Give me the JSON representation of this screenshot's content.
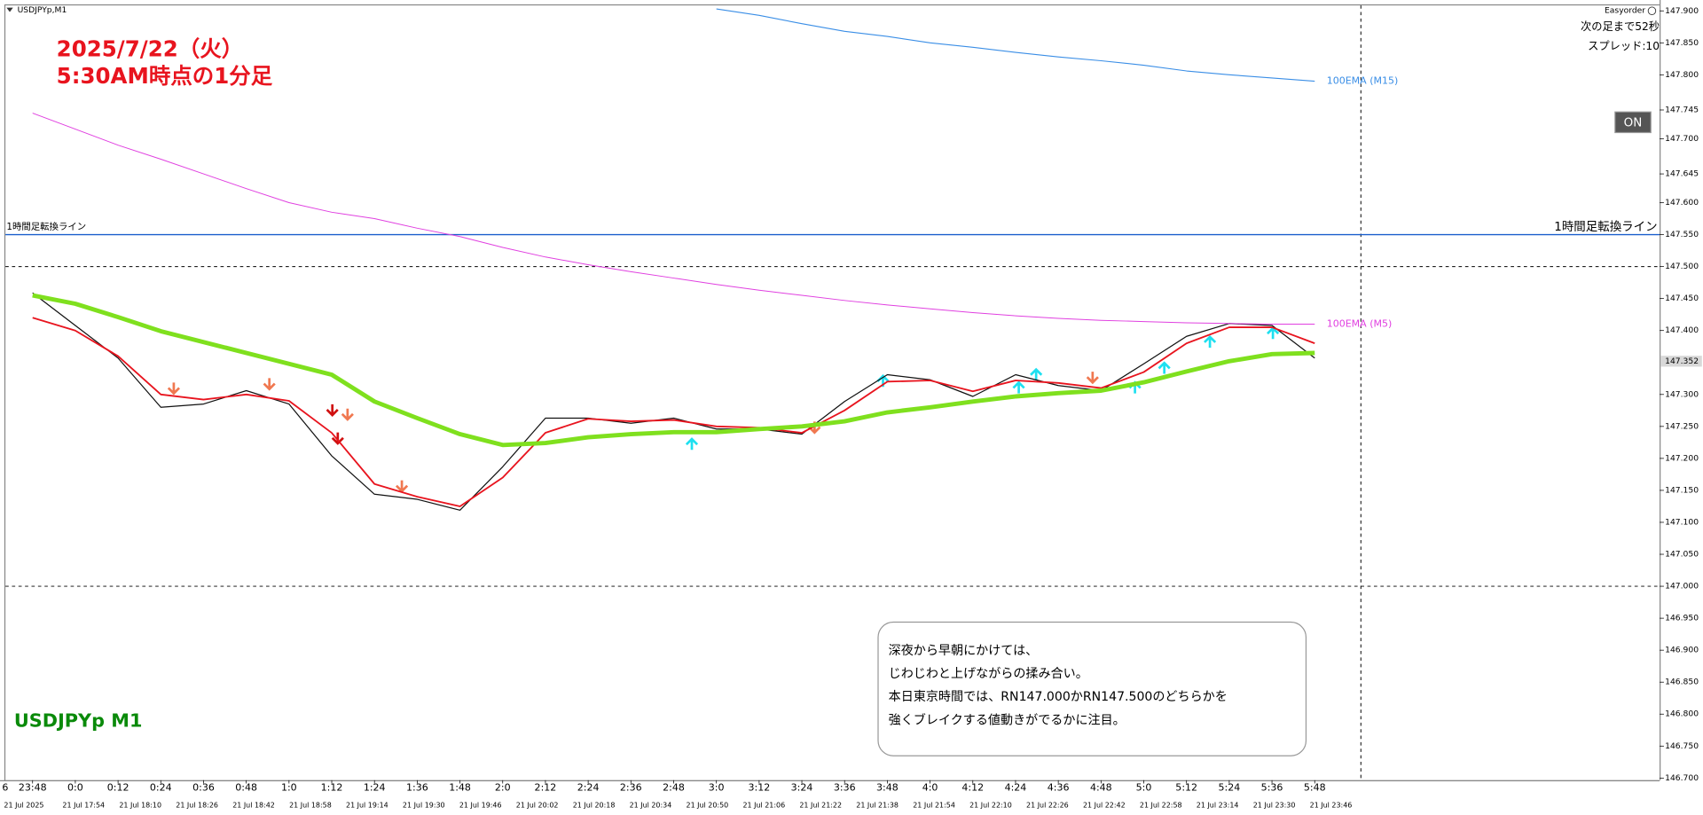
{
  "chart_data": {
    "type": "line",
    "symbol": "USDJPYp,M1",
    "title": "2025/7/22（火）",
    "subtitle": "5:30AM時点の1分足",
    "watermark": "USDJPYp M1",
    "panel": {
      "name": "Easyorder",
      "countdown": "次の足まで52秒",
      "spread": "スプレッド:10",
      "button": "ON"
    },
    "x_edge_label": "6",
    "categories": [
      "23:48",
      "0:0",
      "0:12",
      "0:24",
      "0:36",
      "0:48",
      "1:0",
      "1:12",
      "1:24",
      "1:36",
      "1:48",
      "2:0",
      "2:12",
      "2:24",
      "2:36",
      "2:48",
      "3:0",
      "3:12",
      "3:24",
      "3:36",
      "3:48",
      "4:0",
      "4:12",
      "4:24",
      "4:36",
      "4:48",
      "5:0",
      "5:12",
      "5:24",
      "5:36",
      "5:48"
    ],
    "x2_labels": [
      "21 Jul 2025",
      "21 Jul 17:54",
      "21 Jul 18:10",
      "21 Jul 18:26",
      "21 Jul 18:42",
      "21 Jul 18:58",
      "21 Jul 19:14",
      "21 Jul 19:30",
      "21 Jul 19:46",
      "21 Jul 20:02",
      "21 Jul 20:18",
      "21 Jul 20:34",
      "21 Jul 20:50",
      "21 Jul 21:06",
      "21 Jul 21:22",
      "21 Jul 21:38",
      "21 Jul 21:54",
      "21 Jul 22:10",
      "21 Jul 22:26",
      "21 Jul 22:42",
      "21 Jul 22:58",
      "21 Jul 23:14",
      "21 Jul 23:30",
      "21 Jul 23:46"
    ],
    "series": [
      {
        "color": "#111111",
        "values": [
          147.459,
          147.408,
          147.357,
          147.28,
          147.285,
          147.306,
          147.285,
          147.204,
          147.144,
          147.136,
          147.119,
          147.187,
          147.263,
          147.263,
          147.255,
          147.263,
          147.246,
          147.246,
          147.238,
          147.289,
          147.331,
          147.323,
          147.297,
          147.331,
          147.314,
          147.306,
          147.348,
          147.391,
          147.411,
          147.408,
          147.357
        ]
      },
      {
        "color": "#e8141e",
        "values": [
          147.42,
          147.4,
          147.36,
          147.3,
          147.292,
          147.3,
          147.29,
          147.24,
          147.16,
          147.14,
          147.125,
          147.17,
          147.24,
          147.262,
          147.258,
          147.26,
          147.25,
          147.248,
          147.24,
          147.275,
          147.32,
          147.322,
          147.305,
          147.322,
          147.318,
          147.31,
          147.335,
          147.38,
          147.405,
          147.405,
          147.38
        ]
      },
      {
        "color": "#7fe01e",
        "values": [
          147.455,
          147.442,
          147.421,
          147.399,
          147.382,
          147.365,
          147.348,
          147.331,
          147.289,
          147.263,
          147.238,
          147.221,
          147.224,
          147.233,
          147.238,
          147.241,
          147.241,
          147.246,
          147.25,
          147.258,
          147.272,
          147.28,
          147.289,
          147.297,
          147.302,
          147.306,
          147.319,
          147.336,
          147.352,
          147.363,
          147.365
        ]
      },
      {
        "name": "100EMA (M5)",
        "color": "#e040e0",
        "values": [
          147.74,
          147.715,
          147.69,
          147.668,
          147.645,
          147.622,
          147.6,
          147.585,
          147.575,
          147.56,
          147.547,
          147.53,
          147.515,
          147.503,
          147.492,
          147.482,
          147.472,
          147.463,
          147.455,
          147.447,
          147.44,
          147.434,
          147.428,
          147.423,
          147.419,
          147.416,
          147.414,
          147.412,
          147.411,
          147.41,
          147.41
        ]
      },
      {
        "name": "100EMA (M15)",
        "color": "#3a8ee6",
        "values": [
          null,
          null,
          null,
          null,
          null,
          null,
          null,
          null,
          null,
          null,
          null,
          null,
          null,
          null,
          null,
          null,
          147.903,
          147.893,
          147.88,
          147.868,
          147.86,
          147.85,
          147.843,
          147.835,
          147.828,
          147.822,
          147.815,
          147.806,
          147.8,
          147.795,
          147.79
        ]
      }
    ],
    "ylim": [
      146.6966,
      147.9085
    ],
    "yticks": [
      {
        "value": 147.9,
        "label": "147.900"
      },
      {
        "value": 147.85,
        "label": "147.850"
      },
      {
        "value": 147.8,
        "label": "147.800"
      },
      147.745,
      {
        "value": 147.7,
        "label": "147.700"
      },
      147.645,
      {
        "value": 147.6,
        "label": "147.600"
      },
      {
        "value": 147.55,
        "label": "147.550"
      },
      {
        "value": 147.5,
        "label": "147.500"
      },
      {
        "value": 147.45,
        "label": "147.450"
      },
      {
        "value": 147.4,
        "label": "147.400"
      },
      {
        "value": 147.3,
        "label": "147.300"
      },
      {
        "value": 147.25,
        "label": "147.250"
      },
      {
        "value": 147.2,
        "label": "147.200"
      },
      {
        "value": 147.15,
        "label": "147.150"
      },
      {
        "value": 147.1,
        "label": "147.100"
      },
      {
        "value": 147.05,
        "label": "147.050"
      },
      {
        "value": 147.0,
        "label": "147.000"
      },
      {
        "value": 146.95,
        "label": "146.950"
      },
      {
        "value": 146.9,
        "label": "146.900"
      },
      {
        "value": 146.85,
        "label": "146.850"
      },
      {
        "value": 146.8,
        "label": "146.800"
      },
      {
        "value": 146.75,
        "label": "146.750"
      },
      {
        "value": 146.7,
        "label": "146.700"
      }
    ],
    "current_price": 147.352,
    "levels": [
      {
        "label": "1時間足転換ライン",
        "value": 147.55,
        "color": "#1a5fcc"
      }
    ],
    "dashed_levels": [
      147.5,
      147.0
    ],
    "note": [
      "深夜から早朝にかけては、",
      "じわじわと上げながらの揉み合い。",
      "本日東京時間では、RN147.000かRN147.500のどちらかを",
      "強くブレイクする値動きがでるかに注目。"
    ]
  }
}
